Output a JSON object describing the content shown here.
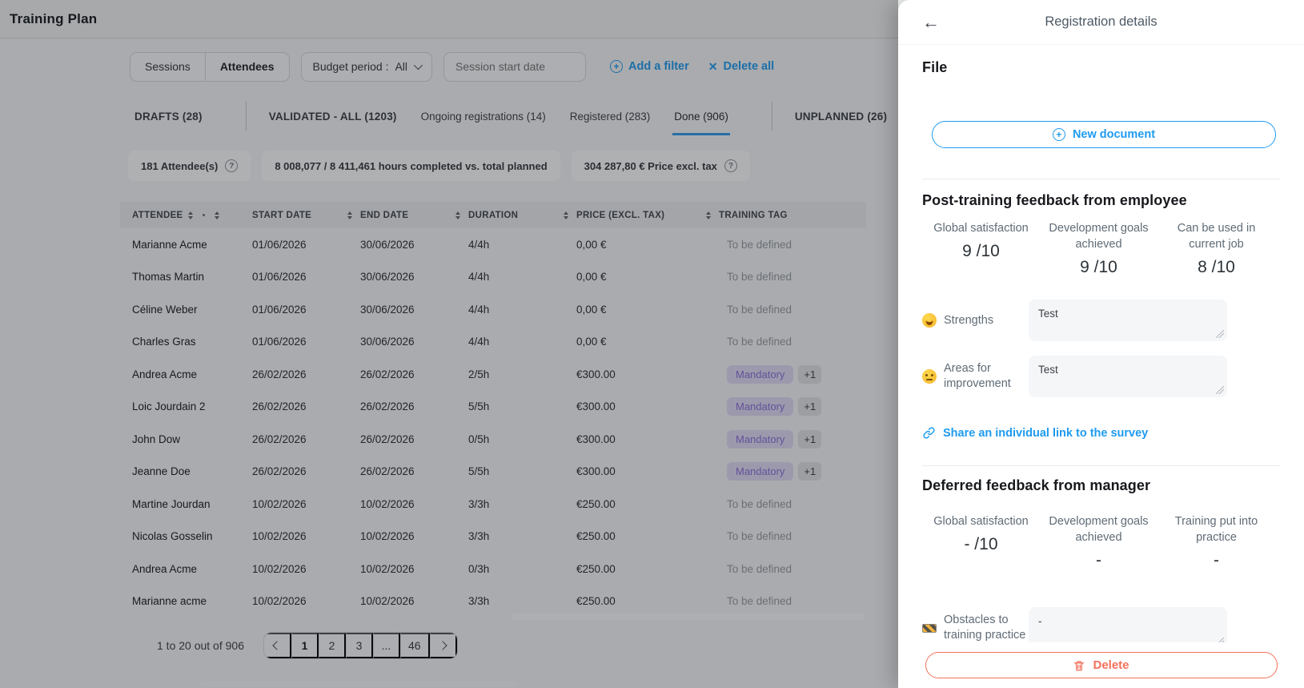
{
  "colors": {
    "accent": "#1e9bf0",
    "danger": "#f4705b",
    "tab_underline": "#2e9ced",
    "mandatory_bg": "#e2dcf7",
    "mandatory_text": "#8a6fd8"
  },
  "page_title": "Training Plan",
  "toolbar": {
    "view_tabs": [
      "Sessions",
      "Attendees"
    ],
    "active_view": "Attendees",
    "budget_filter_label": "Budget period :",
    "budget_filter_value": "All",
    "session_start_date_placeholder": "Session start date",
    "add_filter_label": "Add a filter",
    "delete_all_label": "Delete all"
  },
  "status_tabs": [
    {
      "label": "DRAFTS (28)",
      "emphasized": true,
      "active": false,
      "sep_after": true
    },
    {
      "label": "VALIDATED - ALL (1203)",
      "emphasized": true,
      "active": false,
      "sep_after": false
    },
    {
      "label": "Ongoing registrations (14)",
      "emphasized": false,
      "active": false,
      "sep_after": false
    },
    {
      "label": "Registered (283)",
      "emphasized": false,
      "active": false,
      "sep_after": false
    },
    {
      "label": "Done (906)",
      "emphasized": false,
      "active": true,
      "sep_after": true
    },
    {
      "label": "UNPLANNED (26)",
      "emphasized": true,
      "active": false,
      "sep_after": false
    }
  ],
  "summary_chips": [
    {
      "text": "181 Attendee(s)",
      "has_help": true
    },
    {
      "text": "8 008,077 / 8 411,461 hours completed vs. total planned",
      "has_help": false
    },
    {
      "text": "304 287,80 € Price excl. tax",
      "has_help": true
    }
  ],
  "table": {
    "columns": [
      "ATTENDEE",
      "START DATE",
      "END DATE",
      "DURATION",
      "PRICE (EXCL. TAX)",
      "TRAINING TAG"
    ],
    "rows": [
      {
        "attendee": "Marianne Acme",
        "start_date": "01/06/2026",
        "end_date": "30/06/2026",
        "duration": "4/4h",
        "price": "0,00 €",
        "tag": "To be defined",
        "tag_badge": false,
        "extra": ""
      },
      {
        "attendee": "Thomas Martin",
        "start_date": "01/06/2026",
        "end_date": "30/06/2026",
        "duration": "4/4h",
        "price": "0,00 €",
        "tag": "To be defined",
        "tag_badge": false,
        "extra": ""
      },
      {
        "attendee": "Céline Weber",
        "start_date": "01/06/2026",
        "end_date": "30/06/2026",
        "duration": "4/4h",
        "price": "0,00 €",
        "tag": "To be defined",
        "tag_badge": false,
        "extra": ""
      },
      {
        "attendee": "Charles Gras",
        "start_date": "01/06/2026",
        "end_date": "30/06/2026",
        "duration": "4/4h",
        "price": "0,00 €",
        "tag": "To be defined",
        "tag_badge": false,
        "extra": ""
      },
      {
        "attendee": "Andrea Acme",
        "start_date": "26/02/2026",
        "end_date": "26/02/2026",
        "duration": "2/5h",
        "price": "€300.00",
        "tag": "Mandatory",
        "tag_badge": true,
        "extra": "+1"
      },
      {
        "attendee": "Loic Jourdain 2",
        "start_date": "26/02/2026",
        "end_date": "26/02/2026",
        "duration": "5/5h",
        "price": "€300.00",
        "tag": "Mandatory",
        "tag_badge": true,
        "extra": "+1"
      },
      {
        "attendee": "John Dow",
        "start_date": "26/02/2026",
        "end_date": "26/02/2026",
        "duration": "0/5h",
        "price": "€300.00",
        "tag": "Mandatory",
        "tag_badge": true,
        "extra": "+1"
      },
      {
        "attendee": "Jeanne Doe",
        "start_date": "26/02/2026",
        "end_date": "26/02/2026",
        "duration": "5/5h",
        "price": "€300.00",
        "tag": "Mandatory",
        "tag_badge": true,
        "extra": "+1"
      },
      {
        "attendee": "Martine Jourdan",
        "start_date": "10/02/2026",
        "end_date": "10/02/2026",
        "duration": "3/3h",
        "price": "€250.00",
        "tag": "To be defined",
        "tag_badge": false,
        "extra": ""
      },
      {
        "attendee": "Nicolas Gosselin",
        "start_date": "10/02/2026",
        "end_date": "10/02/2026",
        "duration": "3/3h",
        "price": "€250.00",
        "tag": "To be defined",
        "tag_badge": false,
        "extra": ""
      },
      {
        "attendee": "Andrea Acme",
        "start_date": "10/02/2026",
        "end_date": "10/02/2026",
        "duration": "0/3h",
        "price": "€250.00",
        "tag": "To be defined",
        "tag_badge": false,
        "extra": ""
      },
      {
        "attendee": "Marianne acme",
        "start_date": "10/02/2026",
        "end_date": "10/02/2026",
        "duration": "3/3h",
        "price": "€250.00",
        "tag": "To be defined",
        "tag_badge": false,
        "extra": ""
      }
    ]
  },
  "pagination": {
    "summary": "1 to 20 out of 906",
    "pages": [
      "1",
      "2",
      "3",
      "...",
      "46"
    ],
    "current_page": "1"
  },
  "panel": {
    "title": "Registration details",
    "file_section": {
      "heading": "File",
      "new_document_label": "New document"
    },
    "employee_feedback": {
      "heading": "Post-training feedback from employee",
      "stats": [
        {
          "label": "Global satisfaction",
          "value": "9 /10"
        },
        {
          "label": "Development goals achieved",
          "value": "9 /10"
        },
        {
          "label": "Can be used in current job",
          "value": "8 /10"
        }
      ],
      "fields": [
        {
          "icon": "star-struck-emoji",
          "label": "Strengths",
          "value": "Test"
        },
        {
          "icon": "neutral-face-emoji",
          "label": "Areas for improvement",
          "value": "Test"
        }
      ],
      "share_link_label": "Share an individual link to the survey"
    },
    "manager_feedback": {
      "heading": "Deferred feedback from manager",
      "stats": [
        {
          "label": "Global satisfaction",
          "value": "- /10"
        },
        {
          "label": "Development goals achieved",
          "value": "-"
        },
        {
          "label": "Training put into practice",
          "value": "-"
        }
      ],
      "fields": [
        {
          "icon": "construction-emoji",
          "label": "Obstacles to training practice",
          "value": "-"
        }
      ]
    },
    "delete_label": "Delete"
  }
}
